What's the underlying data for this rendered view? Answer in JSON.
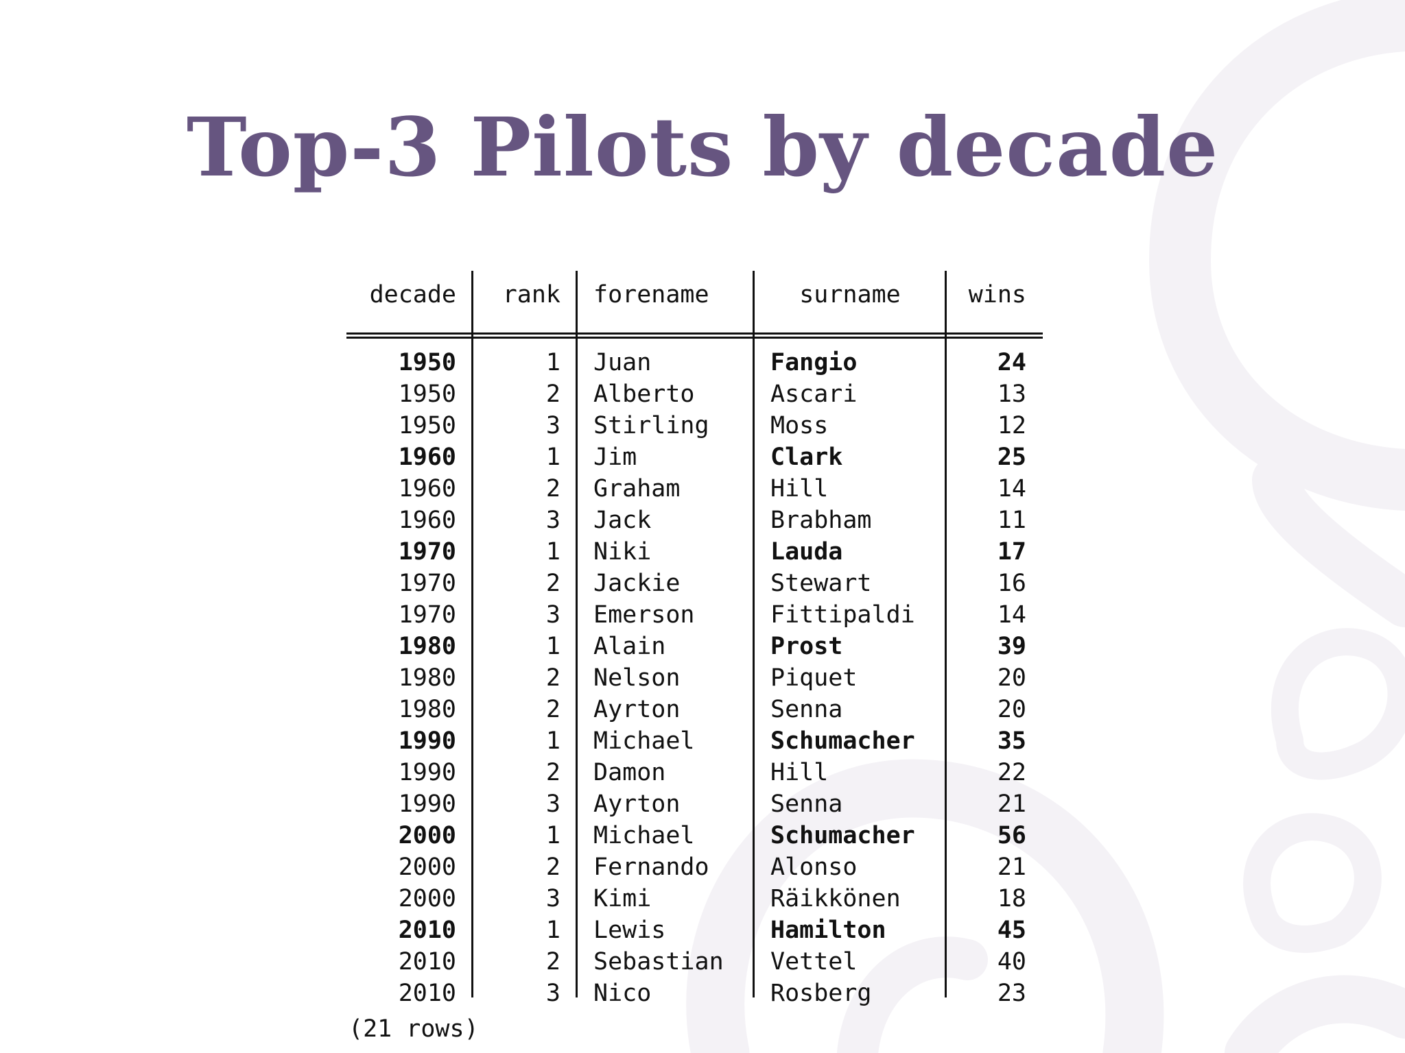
{
  "slide": {
    "title": "Top-3 Pilots by decade"
  },
  "table": {
    "columns": [
      "decade",
      "rank",
      "forename",
      "surname",
      "wins"
    ],
    "rows": [
      {
        "decade": "1950",
        "rank": "1",
        "forename": "Juan",
        "surname": "Fangio",
        "wins": "24",
        "highlight": true
      },
      {
        "decade": "1950",
        "rank": "2",
        "forename": "Alberto",
        "surname": "Ascari",
        "wins": "13",
        "highlight": false
      },
      {
        "decade": "1950",
        "rank": "3",
        "forename": "Stirling",
        "surname": "Moss",
        "wins": "12",
        "highlight": false
      },
      {
        "decade": "1960",
        "rank": "1",
        "forename": "Jim",
        "surname": "Clark",
        "wins": "25",
        "highlight": true
      },
      {
        "decade": "1960",
        "rank": "2",
        "forename": "Graham",
        "surname": "Hill",
        "wins": "14",
        "highlight": false
      },
      {
        "decade": "1960",
        "rank": "3",
        "forename": "Jack",
        "surname": "Brabham",
        "wins": "11",
        "highlight": false
      },
      {
        "decade": "1970",
        "rank": "1",
        "forename": "Niki",
        "surname": "Lauda",
        "wins": "17",
        "highlight": true
      },
      {
        "decade": "1970",
        "rank": "2",
        "forename": "Jackie",
        "surname": "Stewart",
        "wins": "16",
        "highlight": false
      },
      {
        "decade": "1970",
        "rank": "3",
        "forename": "Emerson",
        "surname": "Fittipaldi",
        "wins": "14",
        "highlight": false
      },
      {
        "decade": "1980",
        "rank": "1",
        "forename": "Alain",
        "surname": "Prost",
        "wins": "39",
        "highlight": true
      },
      {
        "decade": "1980",
        "rank": "2",
        "forename": "Nelson",
        "surname": "Piquet",
        "wins": "20",
        "highlight": false
      },
      {
        "decade": "1980",
        "rank": "2",
        "forename": "Ayrton",
        "surname": "Senna",
        "wins": "20",
        "highlight": false
      },
      {
        "decade": "1990",
        "rank": "1",
        "forename": "Michael",
        "surname": "Schumacher",
        "wins": "35",
        "highlight": true
      },
      {
        "decade": "1990",
        "rank": "2",
        "forename": "Damon",
        "surname": "Hill",
        "wins": "22",
        "highlight": false
      },
      {
        "decade": "1990",
        "rank": "3",
        "forename": "Ayrton",
        "surname": "Senna",
        "wins": "21",
        "highlight": false
      },
      {
        "decade": "2000",
        "rank": "1",
        "forename": "Michael",
        "surname": "Schumacher",
        "wins": "56",
        "highlight": true
      },
      {
        "decade": "2000",
        "rank": "2",
        "forename": "Fernando",
        "surname": "Alonso",
        "wins": "21",
        "highlight": false
      },
      {
        "decade": "2000",
        "rank": "3",
        "forename": "Kimi",
        "surname": "Räikkönen",
        "wins": "18",
        "highlight": false
      },
      {
        "decade": "2010",
        "rank": "1",
        "forename": "Lewis",
        "surname": "Hamilton",
        "wins": "45",
        "highlight": true
      },
      {
        "decade": "2010",
        "rank": "2",
        "forename": "Sebastian",
        "surname": "Vettel",
        "wins": "40",
        "highlight": false
      },
      {
        "decade": "2010",
        "rank": "3",
        "forename": "Nico",
        "surname": "Rosberg",
        "wins": "23",
        "highlight": false
      }
    ],
    "footer": "(21 rows)"
  },
  "colors": {
    "title": "#665580",
    "decor": "#f4f2f6"
  }
}
